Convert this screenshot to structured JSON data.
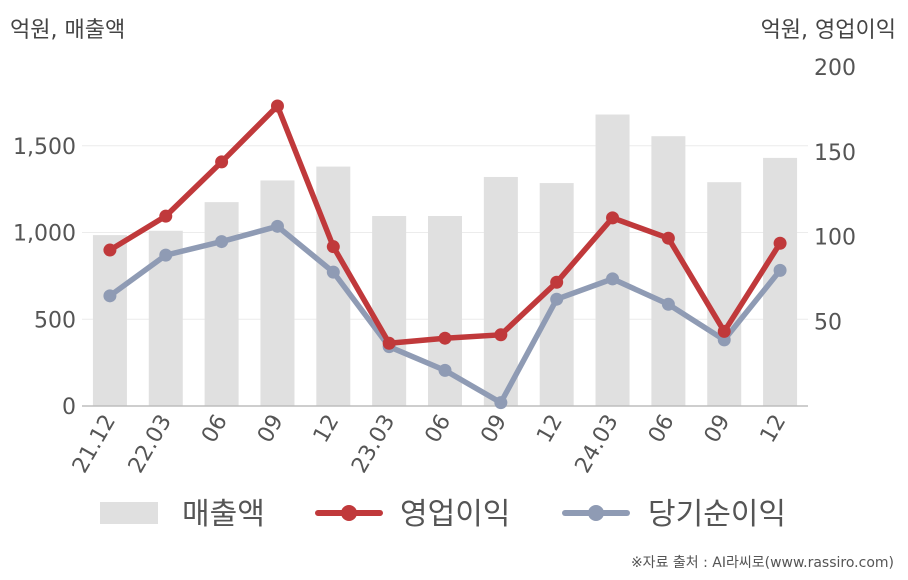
{
  "units": {
    "left": "억원, 매출액",
    "right": "억원, 영업이익"
  },
  "source": "※자료 출처 : AI라씨로(www.rassiro.com)",
  "chart_data": {
    "type": "bar",
    "categories": [
      "21.12",
      "22.03",
      "06",
      "09",
      "12",
      "23.03",
      "06",
      "09",
      "12",
      "24.03",
      "06",
      "09",
      "12"
    ],
    "series": [
      {
        "name": "매출액",
        "type": "bar",
        "axis": "left",
        "color": "#e0e0e0",
        "values": [
          985,
          1010,
          1175,
          1300,
          1380,
          1095,
          1095,
          1320,
          1285,
          1680,
          1555,
          1290,
          1430
        ]
      },
      {
        "name": "영업이익",
        "type": "line",
        "axis": "right",
        "color": "#c0393b",
        "values": [
          92,
          112,
          144,
          177,
          94,
          37,
          40,
          42,
          73,
          111,
          99,
          44,
          96
        ]
      },
      {
        "name": "당기순이익",
        "type": "line",
        "axis": "right",
        "color": "#8f9bb4",
        "values": [
          65,
          89,
          97,
          106,
          79,
          35,
          21,
          2,
          63,
          75,
          60,
          39,
          80
        ]
      }
    ],
    "y_left": {
      "ticks": [
        0,
        500,
        1000,
        1500
      ],
      "tick_labels": [
        "0",
        "500",
        "1,000",
        "1,500"
      ],
      "range": [
        0,
        2000
      ]
    },
    "y_right": {
      "ticks": [
        50,
        100,
        150,
        200
      ],
      "tick_labels": [
        "50",
        "100",
        "150",
        "200"
      ],
      "range": [
        0,
        200
      ]
    },
    "grid": true,
    "legend_position": "bottom"
  }
}
